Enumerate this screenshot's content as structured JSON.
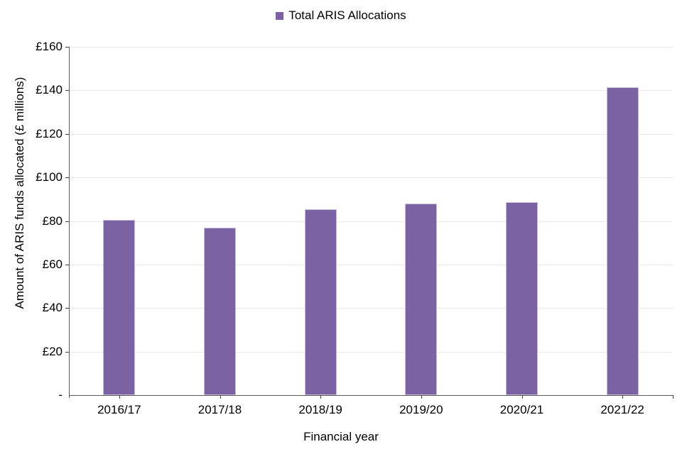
{
  "chart_data": {
    "type": "bar",
    "legend": {
      "label": "Total ARIS Allocations",
      "position": "top-center"
    },
    "categories": [
      "2016/17",
      "2017/18",
      "2018/19",
      "2019/20",
      "2020/21",
      "2021/22"
    ],
    "values": [
      80.5,
      76.9,
      85.4,
      88.1,
      88.7,
      141.5
    ],
    "xlabel": "Financial year",
    "ylabel": "Amount of ARIS funds allocated (£ millions)",
    "ylim": [
      0,
      160
    ],
    "ytick_step": 20,
    "yticks": [
      {
        "value": 0,
        "label": "-"
      },
      {
        "value": 20,
        "label": "£20"
      },
      {
        "value": 40,
        "label": "£40"
      },
      {
        "value": 60,
        "label": "£60"
      },
      {
        "value": 80,
        "label": "£80"
      },
      {
        "value": 100,
        "label": "£100"
      },
      {
        "value": 120,
        "label": "£120"
      },
      {
        "value": 140,
        "label": "£140"
      },
      {
        "value": 160,
        "label": "£160"
      }
    ],
    "grid": "horizontal-light",
    "colors": {
      "bar": "#7b62a3",
      "bar_border": "#c8bbdb",
      "gridline": "#e9e9e9",
      "axis_line": "#595959",
      "text": "#000000"
    }
  }
}
